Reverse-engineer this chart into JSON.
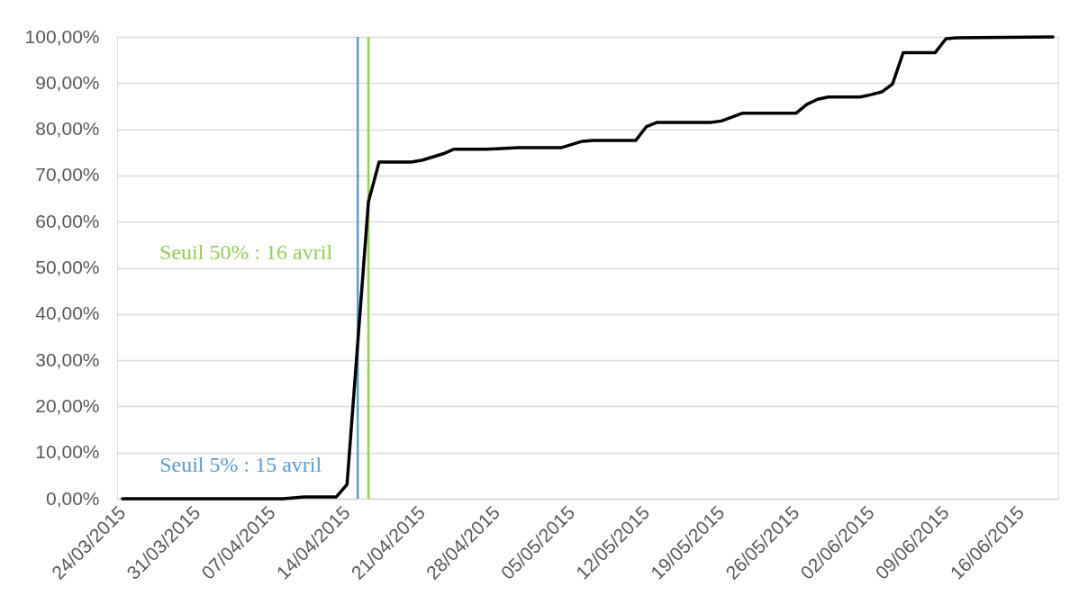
{
  "chart_data": {
    "type": "line",
    "x": [
      "2015-03-24",
      "2015-04-08",
      "2015-04-10",
      "2015-04-13",
      "2015-04-14",
      "2015-04-16",
      "2015-04-17",
      "2015-04-20",
      "2015-04-21",
      "2015-04-23",
      "2015-04-24",
      "2015-04-27",
      "2015-04-28",
      "2015-04-30",
      "2015-05-04",
      "2015-05-06",
      "2015-05-07",
      "2015-05-11",
      "2015-05-12",
      "2015-05-13",
      "2015-05-18",
      "2015-05-19",
      "2015-05-21",
      "2015-05-26",
      "2015-05-27",
      "2015-05-28",
      "2015-05-29",
      "2015-06-01",
      "2015-06-02",
      "2015-06-03",
      "2015-06-04",
      "2015-06-05",
      "2015-06-08",
      "2015-06-09",
      "2015-06-10",
      "2015-06-19"
    ],
    "series": [
      {
        "color": "#000000",
        "values": [
          0,
          0,
          0.4,
          0.4,
          3.1,
          64.3,
          72.9,
          72.9,
          73.3,
          74.7,
          75.7,
          75.7,
          75.8,
          76.0,
          76.0,
          77.4,
          77.6,
          77.6,
          80.6,
          81.5,
          81.5,
          81.8,
          83.5,
          83.5,
          85.4,
          86.5,
          87.0,
          87.0,
          87.5,
          88.1,
          89.8,
          96.6,
          96.6,
          99.6,
          99.8,
          100
        ]
      }
    ],
    "xlim": [
      "2015-03-23T12:00",
      "2015-06-19T12:00"
    ],
    "xticks": [
      {
        "value": "2015-03-24",
        "label": "24/03/2015"
      },
      {
        "value": "2015-03-31",
        "label": "31/03/2015"
      },
      {
        "value": "2015-04-07",
        "label": "07/04/2015"
      },
      {
        "value": "2015-04-14",
        "label": "14/04/2015"
      },
      {
        "value": "2015-04-21",
        "label": "21/04/2015"
      },
      {
        "value": "2015-04-28",
        "label": "28/04/2015"
      },
      {
        "value": "2015-05-05",
        "label": "05/05/2015"
      },
      {
        "value": "2015-05-12",
        "label": "12/05/2015"
      },
      {
        "value": "2015-05-19",
        "label": "19/05/2015"
      },
      {
        "value": "2015-05-26",
        "label": "26/05/2015"
      },
      {
        "value": "2015-06-02",
        "label": "02/06/2015"
      },
      {
        "value": "2015-06-09",
        "label": "09/06/2015"
      },
      {
        "value": "2015-06-16",
        "label": "16/06/2015"
      }
    ],
    "ylim": [
      0,
      100
    ],
    "yticks": [
      {
        "value": 0,
        "label": "0,00%"
      },
      {
        "value": 10,
        "label": "10,00%"
      },
      {
        "value": 20,
        "label": "20,00%"
      },
      {
        "value": 30,
        "label": "30,00%"
      },
      {
        "value": 40,
        "label": "40,00%"
      },
      {
        "value": 50,
        "label": "50,00%"
      },
      {
        "value": 60,
        "label": "60,00%"
      },
      {
        "value": 70,
        "label": "70,00%"
      },
      {
        "value": 80,
        "label": "80,00%"
      },
      {
        "value": 90,
        "label": "90,00%"
      },
      {
        "value": 100,
        "label": "100,00%"
      }
    ],
    "grid": "y",
    "ref_lines": [
      {
        "axis": "x",
        "value": "2015-04-15",
        "label": "Seuil 5% : 15 avril",
        "color": "#5b9bd5"
      },
      {
        "axis": "x",
        "value": "2015-04-16",
        "label": "Seuil 50% : 16 avril",
        "color": "#92d050"
      }
    ]
  }
}
